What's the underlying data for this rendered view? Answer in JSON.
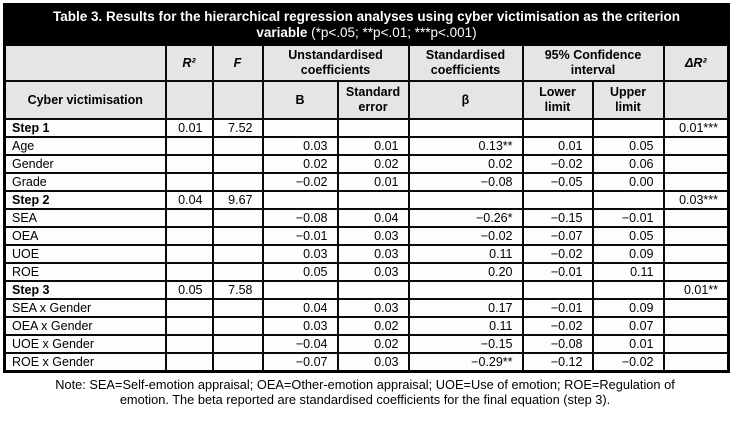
{
  "title": {
    "main": "Table 3. Results for the hierarchical regression analyses using cyber victimisation as the criterion variable ",
    "significance": "(*p<.05; **p<.01; ***p<.001)"
  },
  "header": {
    "group_row": {
      "corner": "",
      "r2": "R²",
      "f": "F",
      "unstd": "Unstandardised coefficients",
      "std": "Standardised coefficients",
      "ci": "95% Confidence interval",
      "dr2": "ΔR²"
    },
    "sub_row": {
      "criterion": "Cyber victimisation",
      "under_r2": "",
      "under_f": "",
      "b": "B",
      "se": "Standard error",
      "beta": "β",
      "lower": "Lower limit",
      "upper": "Upper limit",
      "under_dr2": ""
    }
  },
  "columns_order": [
    "r2",
    "f",
    "b",
    "se",
    "beta",
    "lower",
    "upper",
    "dr2"
  ],
  "rows": [
    {
      "label": "Step 1",
      "type": "step",
      "values": [
        "0.01",
        "7.52",
        "",
        "",
        "",
        "",
        "",
        "0.01***"
      ]
    },
    {
      "label": "Age",
      "type": "predictor",
      "values": [
        "",
        "",
        "0.03",
        "0.01",
        "0.13**",
        "0.01",
        "0.05",
        ""
      ]
    },
    {
      "label": "Gender",
      "type": "predictor",
      "values": [
        "",
        "",
        "0.02",
        "0.02",
        "0.02",
        "−0.02",
        "0.06",
        ""
      ]
    },
    {
      "label": "Grade",
      "type": "predictor",
      "values": [
        "",
        "",
        "−0.02",
        "0.01",
        "−0.08",
        "−0.05",
        "0.00",
        ""
      ]
    },
    {
      "label": "Step 2",
      "type": "step",
      "values": [
        "0.04",
        "9.67",
        "",
        "",
        "",
        "",
        "",
        "0.03***"
      ]
    },
    {
      "label": "SEA",
      "type": "predictor",
      "values": [
        "",
        "",
        "−0.08",
        "0.04",
        "−0.26*",
        "−0.15",
        "−0.01",
        ""
      ]
    },
    {
      "label": "OEA",
      "type": "predictor",
      "values": [
        "",
        "",
        "−0.01",
        "0.03",
        "−0.02",
        "−0.07",
        "0.05",
        ""
      ]
    },
    {
      "label": "UOE",
      "type": "predictor",
      "values": [
        "",
        "",
        "0.03",
        "0.03",
        "0.11",
        "−0.02",
        "0.09",
        ""
      ]
    },
    {
      "label": "ROE",
      "type": "predictor",
      "values": [
        "",
        "",
        "0.05",
        "0.03",
        "0.20",
        "−0.01",
        "0.11",
        ""
      ]
    },
    {
      "label": "Step 3",
      "type": "step",
      "values": [
        "0.05",
        "7.58",
        "",
        "",
        "",
        "",
        "",
        "0.01**"
      ]
    },
    {
      "label": "SEA x Gender",
      "type": "predictor",
      "values": [
        "",
        "",
        "0.04",
        "0.03",
        "0.17",
        "−0.01",
        "0.09",
        ""
      ]
    },
    {
      "label": "OEA x Gender",
      "type": "predictor",
      "values": [
        "",
        "",
        "0.03",
        "0.02",
        "0.11",
        "−0.02",
        "0.07",
        ""
      ]
    },
    {
      "label": "UOE x Gender",
      "type": "predictor",
      "values": [
        "",
        "",
        "−0.04",
        "0.02",
        "−0.15",
        "−0.08",
        "0.01",
        ""
      ]
    },
    {
      "label": "ROE x Gender",
      "type": "predictor",
      "values": [
        "",
        "",
        "−0.07",
        "0.03",
        "−0.29**",
        "−0.12",
        "−0.02",
        ""
      ]
    }
  ],
  "note": "Note: SEA=Self-emotion appraisal; OEA=Other-emotion appraisal; UOE=Use of emotion; ROE=Regulation of emotion. The beta reported are standardised coefficients for the final equation (step 3)."
}
